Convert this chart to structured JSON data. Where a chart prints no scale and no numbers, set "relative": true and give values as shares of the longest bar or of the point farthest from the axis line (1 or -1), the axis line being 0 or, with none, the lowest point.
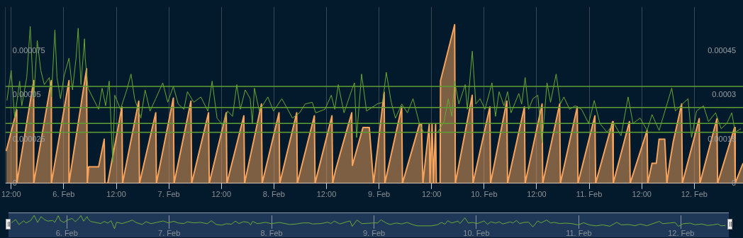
{
  "chart_data": [
    {
      "type": "line",
      "xlim": [
        "--02-05T10:43",
        "--02-12T11:07"
      ],
      "ylim": [
        0,
        0.0001
      ],
      "yticks": [
        0,
        {
          "value": 2.5e-05,
          "label": "0.000025"
        },
        {
          "value": 5e-05,
          "label": "0.00005"
        },
        {
          "value": 7.5e-05,
          "label": "0.000075"
        }
      ],
      "y2lim": [
        0,
        0.0006
      ],
      "y2ticks": [
        0,
        {
          "value": 0.00015,
          "label": "0.00015"
        },
        {
          "value": 0.0003,
          "label": "0.0003"
        },
        {
          "value": 0.00045,
          "label": "0.00045"
        }
      ],
      "xticks": [
        {
          "value": "--02-05T12:00",
          "label": "12:00"
        },
        {
          "value": "--02-06",
          "label": "6. Feb"
        },
        {
          "value": "--02-06T12:00",
          "label": "12:00"
        },
        {
          "value": "--02-07",
          "label": "7. Feb"
        },
        {
          "value": "--02-07T12:00",
          "label": "12:00"
        },
        {
          "value": "--02-08",
          "label": "8. Feb"
        },
        {
          "value": "--02-08T12:00",
          "label": "12:00"
        },
        {
          "value": "--02-09",
          "label": "9. Feb"
        },
        {
          "value": "--02-09T12:00",
          "label": "12:00"
        },
        {
          "value": "--02-10",
          "label": "10. Feb"
        },
        {
          "value": "--02-10T12:00",
          "label": "12:00"
        },
        {
          "value": "--02-11",
          "label": "11. Feb"
        },
        {
          "value": "--02-11T12:00",
          "label": "12:00"
        },
        {
          "value": "--02-12",
          "label": "12. Feb"
        }
      ],
      "grid": "x",
      "ref_lines": [
        {
          "axis": "y",
          "value": 5.5e-05,
          "color": "#5e9f32"
        },
        {
          "axis": "y",
          "value": 4.3e-05,
          "color": "#5e9f32"
        },
        {
          "axis": "y",
          "value": 3.4e-05,
          "color": "#5e9f32"
        },
        {
          "axis": "y",
          "value": 2.9e-05,
          "color": "#5e9f32"
        }
      ],
      "series": [
        {
          "type": "line",
          "color": "#6aaa35",
          "x": [
            "--02-05T11:02",
            "--02-05T12:00",
            "--02-05T12:48",
            "--02-05T13:56",
            "--02-05T14:25",
            "--02-05T15:33",
            "--02-05T16:21",
            "--02-05T17:09",
            "--02-05T17:57",
            "--02-05T18:46",
            "--02-05T19:34",
            "--02-05T20:42",
            "--02-05T21:11",
            "--02-05T21:59",
            "--02-05T22:28",
            "--02-05T23:16",
            "--02-06T00:05",
            "--02-06T01:12",
            "--02-06T02:00",
            "--02-06T02:49",
            "--02-06T03:18",
            "--02-06T03:56",
            "--02-06T04:45",
            "--02-06T04:54",
            "--02-06T05:33",
            "--02-06T07:58",
            "--02-06T08:46",
            "--02-06T09:34",
            "--02-06T10:23",
            "--02-06T11:11",
            "--02-06T11:40",
            "--02-06T12:57",
            "--02-06T14:24",
            "--02-06T15:22",
            "--02-06T16:11",
            "--02-06T17:37",
            "--02-06T18:35",
            "--02-06T19:43",
            "--02-06T21:00",
            "--02-06T22:37",
            "--02-06T23:45",
            "--02-07T01:02",
            "--02-07T02:09",
            "--02-07T03:27",
            "--02-07T04:15",
            "--02-07T05:42",
            "--02-07T07:19",
            "--02-07T08:55",
            "--02-07T09:53",
            "--02-07T11:01",
            "--02-07T12:18",
            "--02-07T13:26",
            "--02-07T14:33",
            "--02-07T15:31",
            "--02-07T16:20",
            "--02-07T17:27",
            "--02-07T18:35",
            "--02-07T19:04",
            "--02-07T19:33",
            "--02-07T20:40",
            "--02-07T22:36",
            "--02-07T23:54",
            "--02-08T01:49",
            "--02-08T04:14",
            "--02-08T05:51",
            "--02-08T07:08",
            "--02-08T08:45",
            "--02-08T09:33",
            "--02-08T11:39",
            "--02-08T13:06",
            "--02-08T13:54",
            "--02-08T14:42",
            "--02-08T16:00",
            "--02-08T17:55",
            "--02-08T18:24",
            "--02-08T18:53",
            "--02-08T20:01",
            "--02-08T21:09",
            "--02-08T23:34",
            "--02-09T00:51",
            "--02-09T01:39",
            "--02-09T02:47",
            "--02-09T03:45",
            "--02-09T05:12",
            "--02-09T06:29",
            "--02-09T07:46",
            "--02-09T09:13",
            "--02-09T10:11",
            "--02-09T13:24",
            "--02-09T14:51",
            "--02-09T15:49",
            "--02-09T16:38",
            "--02-09T17:16",
            "--02-09T18:14",
            "--02-09T19:41",
            "--02-09T20:10",
            "--02-09T21:18",
            "--02-09T22:06",
            "--02-09T23:04",
            "--02-10T00:12",
            "--02-10T01:48",
            "--02-10T02:36",
            "--02-10T03:25",
            "--02-10T04:32",
            "--02-10T05:21",
            "--02-10T06:09",
            "--02-10T07:07",
            "--02-10T07:55",
            "--02-10T08:34",
            "--02-10T09:22",
            "--02-10T10:10",
            "--02-10T11:08",
            "--02-10T12:16",
            "--02-10T13:14",
            "--02-10T14:22",
            "--02-10T15:10",
            "--02-10T16:27",
            "--02-10T17:25",
            "--02-10T18:13",
            "--02-10T19:31",
            "--02-10T20:48",
            "--02-10T22:15",
            "--02-10T23:52",
            "--02-11T01:09",
            "--02-11T02:26",
            "--02-11T04:03",
            "--02-11T05:39",
            "--02-11T07:16",
            "--02-11T08:53",
            "--02-11T10:00",
            "--02-11T11:37",
            "--02-11T13:13",
            "--02-11T14:21",
            "--02-11T15:58",
            "--02-11T18:51",
            "--02-11T19:40",
            "--02-11T21:16",
            "--02-11T22:34",
            "--02-11T23:22",
            "--02-12T00:30",
            "--02-12T02:06",
            "--02-12T03:14",
            "--02-12T04:51",
            "--02-12T06:08",
            "--02-12T07:25",
            "--02-12T08:33",
            "--02-12T09:21",
            "--02-12T10:38"
          ],
          "values": [
            4.7e-05,
            6.4e-05,
            3.7e-05,
            5.8e-05,
            4.4e-05,
            6e-05,
            8.9e-05,
            4.8e-05,
            8.1e-05,
            6.4e-05,
            5.6e-05,
            6e-05,
            4.9e-05,
            8.7e-05,
            6e-05,
            4.8e-05,
            6.1e-05,
            7.1e-05,
            5.3e-05,
            7.1e-05,
            8.8e-05,
            5.6e-05,
            8.2e-05,
            7.1e-05,
            5.4e-05,
            4.2e-05,
            5.4e-05,
            4.4e-05,
            5.8e-05,
            1.2e-05,
            5e-05,
            4.2e-05,
            5.3e-05,
            6.2e-05,
            4.8e-05,
            3.7e-05,
            5.3e-05,
            4.1e-05,
            4.8e-05,
            5.7e-05,
            4.6e-05,
            5.5e-05,
            4.5e-05,
            4.2e-05,
            5.2e-05,
            4.6e-05,
            4.9e-05,
            4.1e-05,
            5.8e-05,
            3.7e-05,
            3.3e-05,
            4.1e-05,
            3.8e-05,
            5.6e-05,
            4.2e-05,
            5.3e-05,
            4.8e-05,
            3.4e-05,
            5.4e-05,
            4.1e-05,
            4.9e-05,
            4.1e-05,
            4.8e-05,
            3.7e-05,
            4e-05,
            4.5e-05,
            4.6e-05,
            4e-05,
            4.2e-05,
            5e-05,
            4.2e-05,
            5.6e-05,
            4e-05,
            5.4e-05,
            5.7e-05,
            2.6e-05,
            6.2e-05,
            4.1e-05,
            4.5e-05,
            4.6e-05,
            6.3e-05,
            4.6e-05,
            3.7e-05,
            4.5e-05,
            4e-05,
            4.8e-05,
            3.4e-05,
            2.9e-05,
            2.9e-05,
            3.5e-05,
            4.8e-05,
            3.8e-05,
            5.8e-05,
            4.5e-05,
            5.6e-05,
            4.2e-05,
            7.5e-05,
            4.5e-05,
            4.8e-05,
            4.2e-05,
            5.7e-05,
            3.8e-05,
            5.2e-05,
            4.4e-05,
            5.2e-05,
            4e-05,
            4.6e-05,
            5.1e-05,
            4.5e-05,
            6e-05,
            4.2e-05,
            4.8e-05,
            5e-05,
            2.3e-05,
            5.7e-05,
            4.6e-05,
            6.2e-05,
            4.5e-05,
            4.9e-05,
            4.2e-05,
            4.4e-05,
            4.2e-05,
            3.4e-05,
            4.7e-05,
            3.4e-05,
            2.9e-05,
            3.4e-05,
            2.7e-05,
            4.9e-05,
            3.4e-05,
            3.7e-05,
            3e-05,
            3.9e-05,
            3e-05,
            5.4e-05,
            4.1e-05,
            4.5e-05,
            4.8e-05,
            2.6e-05,
            4.1e-05,
            4.4e-05,
            3.5e-05,
            4e-05,
            3.1e-05,
            3.4e-05,
            4e-05,
            2.9e-05,
            3.1e-05
          ]
        },
        {
          "type": "area",
          "color": "#f7a35c",
          "axis": "y2",
          "x": [
            "--02-05T10:52",
            "--02-05T13:17",
            "--02-05T13:17",
            "--02-05T17:09",
            "--02-05T17:09",
            "--02-05T21:11",
            "--02-05T21:11",
            "--02-06T01:12",
            "--02-06T01:12",
            "--02-06T05:13",
            "--02-06T05:23",
            "--02-06T05:42",
            "--02-06T07:58",
            "--02-06T09:15",
            "--02-06T09:25",
            "--02-06T10:03",
            "--02-06T13:17",
            "--02-06T13:26",
            "--02-06T17:08",
            "--02-06T17:18",
            "--02-06T21:01",
            "--02-06T21:10",
            "--02-07T01:02",
            "--02-07T01:12",
            "--02-07T05:03",
            "--02-07T05:13",
            "--02-07T09:04",
            "--02-07T09:14",
            "--02-07T13:07",
            "--02-07T13:16",
            "--02-07T17:08",
            "--02-07T17:18",
            "--02-07T21:09",
            "--02-07T21:19",
            "--02-08T01:10",
            "--02-08T01:20",
            "--02-08T05:12",
            "--02-08T05:21",
            "--02-08T09:14",
            "--02-08T09:24",
            "--02-08T13:15",
            "--02-08T13:25",
            "--02-08T14:04",
            "--02-08T15:40",
            "--02-08T17:46",
            "--02-08T17:55",
            "--02-08T20:20",
            "--02-08T21:47",
            "--02-08T22:45",
            "--02-09T01:10",
            "--02-09T01:20",
            "--02-09T05:11",
            "--02-09T05:21",
            "--02-09T09:13",
            "--02-09T09:42",
            "--02-09T10:01",
            "--02-09T11:28",
            "--02-09T11:38",
            "--02-09T12:07",
            "--02-09T12:26",
            "--02-09T12:55",
            "--02-09T13:05",
            "--02-09T13:57",
            "--02-09T14:03",
            "--02-09T17:16",
            "--02-09T17:26",
            "--02-09T21:17",
            "--02-09T21:27",
            "--02-10T01:19",
            "--02-10T01:28",
            "--02-10T05:11",
            "--02-10T05:21",
            "--02-10T09:12",
            "--02-10T09:22",
            "--02-10T13:14",
            "--02-10T13:23",
            "--02-10T17:15",
            "--02-10T17:25",
            "--02-10T21:16",
            "--02-10T21:26",
            "--02-11T01:18",
            "--02-11T01:28",
            "--02-11T05:20",
            "--02-11T05:29",
            "--02-11T09:11",
            "--02-11T09:21",
            "--02-11T13:13",
            "--02-11T13:22",
            "--02-11T14:20",
            "--02-11T15:19",
            "--02-11T15:57",
            "--02-11T17:15",
            "--02-11T17:44",
            "--02-11T18:22",
            "--02-11T19:10",
            "--02-11T21:06",
            "--02-11T21:16",
            "--02-12T01:07",
            "--02-12T01:17",
            "--02-12T05:10",
            "--02-12T05:19",
            "--02-12T09:11",
            "--02-12T09:20",
            "--02-12T11:07"
          ],
          "values": [
            0.00011,
            0.00025,
            0,
            0.00035,
            0,
            0.00035,
            0,
            0.00035,
            0,
            0.00039,
            0,
            5.6e-05,
            5.6e-05,
            0.00015,
            0,
            0,
            0.00026,
            0,
            0.00028,
            0,
            0.00024,
            0,
            0.00029,
            0,
            0.00028,
            0,
            0.00024,
            0,
            0.00024,
            0,
            0.00023,
            0,
            0.00027,
            0,
            0.00024,
            0,
            0.00024,
            0,
            0.00023,
            0,
            0.00023,
            0,
            4.4e-05,
            0.00013,
            0.00024,
            6.1e-05,
            0.00019,
            0.00019,
            0,
            0.00031,
            0,
            0.00026,
            0,
            0.0002,
            0.0002,
            0,
            0.0002,
            0,
            0.0002,
            0,
            0.0002,
            0,
            0,
            0.00035,
            0.00054,
            0,
            0.0003,
            0,
            0.00026,
            0,
            0.00028,
            0,
            0.00026,
            0,
            0.00027,
            0,
            0.00027,
            0,
            0.00026,
            0,
            0.00023,
            0,
            0.00021,
            0,
            0.00021,
            0,
            0.00018,
            0,
            6.8e-05,
            6.8e-05,
            0.00015,
            0.00015,
            0,
            6.8e-05,
            0.00014,
            0.00027,
            0,
            0.00022,
            0,
            0.00022,
            0,
            0.00019,
            0,
            6.8e-05
          ]
        }
      ]
    },
    {
      "type": "line",
      "xlim": [
        "--02-05T10:20",
        "--02-12T11:10"
      ],
      "relative": true,
      "tick_labels": "x",
      "grid": "x",
      "xticks": [
        {
          "value": "--02-06",
          "label": "6. Feb"
        },
        {
          "value": "--02-07",
          "label": "7. Feb"
        },
        {
          "value": "--02-08",
          "label": "8. Feb"
        },
        {
          "value": "--02-09",
          "label": "9. Feb"
        },
        {
          "value": "--02-10",
          "label": "10. Feb"
        },
        {
          "value": "--02-11",
          "label": "11. Feb"
        },
        {
          "value": "--02-12",
          "label": "12. Feb"
        }
      ],
      "series": [
        {
          "type": "line",
          "color": "#6aaa35",
          "x": [
            "--02-05T11:02",
            "--02-05T12:00",
            "--02-05T12:48",
            "--02-05T13:56",
            "--02-05T14:25",
            "--02-05T15:33",
            "--02-05T16:21",
            "--02-05T17:09",
            "--02-05T17:57",
            "--02-05T18:46",
            "--02-05T19:34",
            "--02-05T20:42",
            "--02-05T21:11",
            "--02-05T21:59",
            "--02-05T22:28",
            "--02-05T23:16",
            "--02-06T00:05",
            "--02-06T01:12",
            "--02-06T02:00",
            "--02-06T02:49",
            "--02-06T03:18",
            "--02-06T03:56",
            "--02-06T04:45",
            "--02-06T04:54",
            "--02-06T05:33",
            "--02-06T07:58",
            "--02-06T08:46",
            "--02-06T09:34",
            "--02-06T10:23",
            "--02-06T11:11",
            "--02-06T11:40",
            "--02-06T12:57",
            "--02-06T14:24",
            "--02-06T15:22",
            "--02-06T16:11",
            "--02-06T17:37",
            "--02-06T18:35",
            "--02-06T19:43",
            "--02-06T21:00",
            "--02-06T22:37",
            "--02-06T23:45",
            "--02-07T01:02",
            "--02-07T02:09",
            "--02-07T03:27",
            "--02-07T04:15",
            "--02-07T05:42",
            "--02-07T07:19",
            "--02-07T08:55",
            "--02-07T09:53",
            "--02-07T11:01",
            "--02-07T12:18",
            "--02-07T13:26",
            "--02-07T14:33",
            "--02-07T15:31",
            "--02-07T16:20",
            "--02-07T17:27",
            "--02-07T18:35",
            "--02-07T19:04",
            "--02-07T19:33",
            "--02-07T20:40",
            "--02-07T22:36",
            "--02-07T23:54",
            "--02-08T01:49",
            "--02-08T04:14",
            "--02-08T05:51",
            "--02-08T07:08",
            "--02-08T08:45",
            "--02-08T09:33",
            "--02-08T11:39",
            "--02-08T13:06",
            "--02-08T13:54",
            "--02-08T14:42",
            "--02-08T16:00",
            "--02-08T17:55",
            "--02-08T18:24",
            "--02-08T18:53",
            "--02-08T20:01",
            "--02-08T21:09",
            "--02-08T23:34",
            "--02-09T00:51",
            "--02-09T01:39",
            "--02-09T02:47",
            "--02-09T03:45",
            "--02-09T05:12",
            "--02-09T06:29",
            "--02-09T07:46",
            "--02-09T09:13",
            "--02-09T10:11",
            "--02-09T13:24",
            "--02-09T14:51",
            "--02-09T15:49",
            "--02-09T16:38",
            "--02-09T17:16",
            "--02-09T18:14",
            "--02-09T19:41",
            "--02-09T20:10",
            "--02-09T21:18",
            "--02-09T22:06",
            "--02-09T23:04",
            "--02-10T00:12",
            "--02-10T01:48",
            "--02-10T02:36",
            "--02-10T03:25",
            "--02-10T04:32",
            "--02-10T05:21",
            "--02-10T06:09",
            "--02-10T07:07",
            "--02-10T07:55",
            "--02-10T08:34",
            "--02-10T09:22",
            "--02-10T10:10",
            "--02-10T11:08",
            "--02-10T12:16",
            "--02-10T13:14",
            "--02-10T14:22",
            "--02-10T15:10",
            "--02-10T16:27",
            "--02-10T17:25",
            "--02-10T18:13",
            "--02-10T19:31",
            "--02-10T20:48",
            "--02-10T22:15",
            "--02-10T23:52",
            "--02-11T01:09",
            "--02-11T02:26",
            "--02-11T04:03",
            "--02-11T05:39",
            "--02-11T07:16",
            "--02-11T08:53",
            "--02-11T10:00",
            "--02-11T11:37",
            "--02-11T13:13",
            "--02-11T14:21",
            "--02-11T15:58",
            "--02-11T18:51",
            "--02-11T19:40",
            "--02-11T21:16",
            "--02-11T22:34",
            "--02-11T23:22",
            "--02-12T00:30",
            "--02-12T02:06",
            "--02-12T03:14",
            "--02-12T04:51",
            "--02-12T06:08",
            "--02-12T07:25",
            "--02-12T08:33",
            "--02-12T09:21",
            "--02-12T10:24"
          ],
          "values": [
            0.45,
            0.68,
            0.32,
            0.6,
            0.42,
            0.62,
            1,
            0.47,
            0.9,
            0.68,
            0.57,
            0.62,
            0.48,
            0.97,
            0.62,
            0.47,
            0.64,
            0.77,
            0.53,
            0.77,
            0.99,
            0.57,
            0.91,
            0.77,
            0.55,
            0.39,
            0.55,
            0.42,
            0.6,
            0,
            0.49,
            0.39,
            0.53,
            0.65,
            0.47,
            0.32,
            0.53,
            0.38,
            0.47,
            0.58,
            0.44,
            0.56,
            0.43,
            0.39,
            0.52,
            0.44,
            0.48,
            0.38,
            0.6,
            0.32,
            0.27,
            0.38,
            0.34,
            0.57,
            0.39,
            0.53,
            0.47,
            0.29,
            0.55,
            0.38,
            0.48,
            0.38,
            0.47,
            0.32,
            0.36,
            0.43,
            0.44,
            0.36,
            0.39,
            0.49,
            0.39,
            0.57,
            0.36,
            0.55,
            0.58,
            0.18,
            0.65,
            0.38,
            0.43,
            0.44,
            0.66,
            0.44,
            0.32,
            0.43,
            0.36,
            0.47,
            0.29,
            0.22,
            0.22,
            0.3,
            0.47,
            0.34,
            0.6,
            0.43,
            0.57,
            0.39,
            0.82,
            0.43,
            0.47,
            0.39,
            0.58,
            0.34,
            0.52,
            0.42,
            0.52,
            0.36,
            0.44,
            0.51,
            0.43,
            0.62,
            0.39,
            0.47,
            0.49,
            0.14,
            0.58,
            0.44,
            0.65,
            0.43,
            0.48,
            0.39,
            0.42,
            0.39,
            0.29,
            0.45,
            0.29,
            0.22,
            0.29,
            0.19,
            0.48,
            0.29,
            0.32,
            0.23,
            0.35,
            0.23,
            0.55,
            0.38,
            0.43,
            0.47,
            0.18,
            0.38,
            0.42,
            0.3,
            0.36,
            0.25,
            0.29,
            0.36,
            0.22,
            0.25
          ]
        }
      ]
    }
  ]
}
